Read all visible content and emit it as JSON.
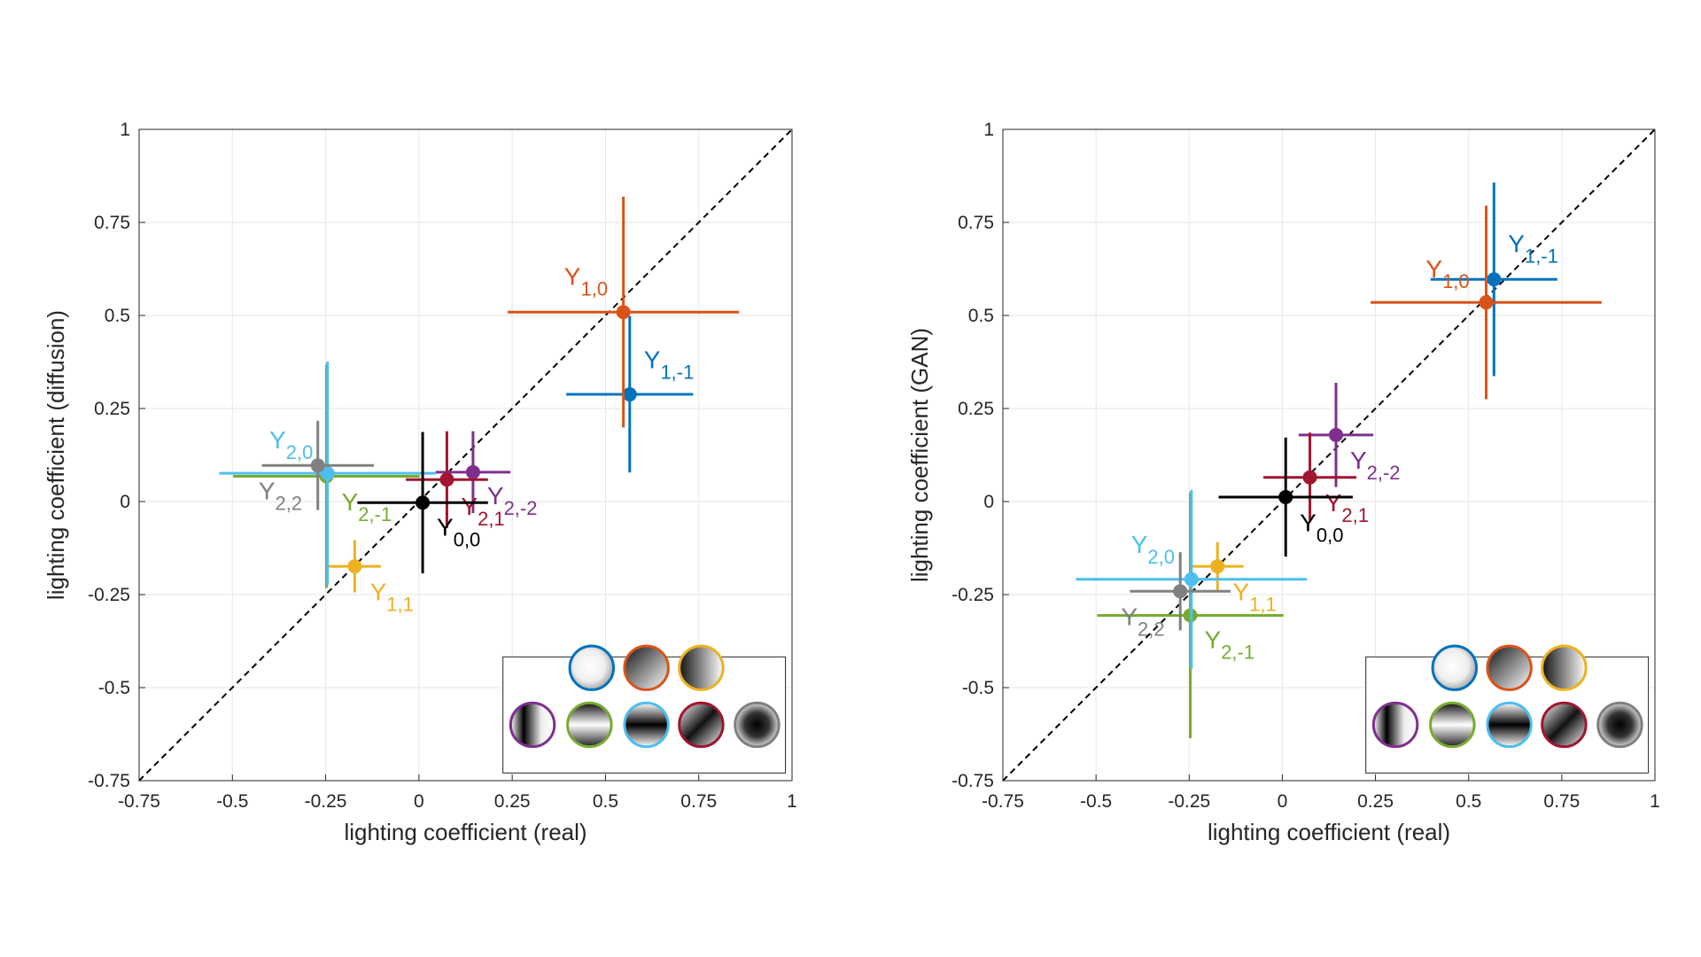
{
  "chart_data": [
    {
      "type": "scatter",
      "xlabel": "lighting coefficient (real)",
      "ylabel": "lighting coefficient (diffusion)",
      "xlim": [
        -0.75,
        1
      ],
      "ylim": [
        -0.75,
        1
      ],
      "xticks": [
        -0.75,
        -0.5,
        -0.25,
        0,
        0.25,
        0.5,
        0.75,
        1
      ],
      "yticks": [
        -0.75,
        -0.5,
        -0.25,
        0,
        0.25,
        0.5,
        0.75,
        1
      ],
      "grid": true,
      "diagonal": true,
      "series": [
        {
          "name": "Y",
          "index": "1,-1",
          "color": "#0072BD",
          "x": [
            0.565
          ],
          "y": [
            0.288
          ],
          "xerr": [
            0.17
          ],
          "yerr": [
            0.21
          ]
        },
        {
          "name": "Y",
          "index": "1,0",
          "color": "#D95319",
          "x": [
            0.548
          ],
          "y": [
            0.509
          ],
          "xerr": [
            0.31
          ],
          "yerr": [
            0.31
          ]
        },
        {
          "name": "Y",
          "index": "1,1",
          "color": "#EDB120",
          "x": [
            -0.172
          ],
          "y": [
            -0.174
          ],
          "xerr": [
            0.07
          ],
          "yerr": [
            0.07
          ]
        },
        {
          "name": "Y",
          "index": "2,-2",
          "color": "#7E2F8E",
          "x": [
            0.145
          ],
          "y": [
            0.079
          ],
          "xerr": [
            0.1
          ],
          "yerr": [
            0.11
          ]
        },
        {
          "name": "Y",
          "index": "2,-1",
          "color": "#77AC30",
          "x": [
            -0.248
          ],
          "y": [
            0.068
          ],
          "xerr": [
            0.25
          ],
          "yerr": [
            0.3
          ]
        },
        {
          "name": "Y",
          "index": "2,0",
          "color": "#4DBEEE",
          "x": [
            -0.245
          ],
          "y": [
            0.076
          ],
          "xerr": [
            0.29
          ],
          "yerr": [
            0.3
          ]
        },
        {
          "name": "Y",
          "index": "2,1",
          "color": "#A2142F",
          "x": [
            0.075
          ],
          "y": [
            0.059
          ],
          "xerr": [
            0.11
          ],
          "yerr": [
            0.13
          ]
        },
        {
          "name": "Y",
          "index": "2,2",
          "color": "#808080",
          "x": [
            -0.271
          ],
          "y": [
            0.097
          ],
          "xerr": [
            0.15
          ],
          "yerr": [
            0.12
          ]
        },
        {
          "name": "Y",
          "index": "0,0",
          "color": "#000000",
          "x": [
            0.01
          ],
          "y": [
            -0.003
          ],
          "xerr": [
            0.175
          ],
          "yerr": [
            0.19
          ]
        }
      ]
    },
    {
      "type": "scatter",
      "xlabel": "lighting coefficient (real)",
      "ylabel": "lighting coefficient (GAN)",
      "xlim": [
        -0.75,
        1
      ],
      "ylim": [
        -0.75,
        1
      ],
      "xticks": [
        -0.75,
        -0.5,
        -0.25,
        0,
        0.25,
        0.5,
        0.75,
        1
      ],
      "yticks": [
        -0.75,
        -0.5,
        -0.25,
        0,
        0.25,
        0.5,
        0.75,
        1
      ],
      "grid": true,
      "diagonal": true,
      "series": [
        {
          "name": "Y",
          "index": "1,-1",
          "color": "#0072BD",
          "x": [
            0.568
          ],
          "y": [
            0.597
          ],
          "xerr": [
            0.17
          ],
          "yerr": [
            0.26
          ]
        },
        {
          "name": "Y",
          "index": "1,0",
          "color": "#D95319",
          "x": [
            0.547
          ],
          "y": [
            0.535
          ],
          "xerr": [
            0.31
          ],
          "yerr": [
            0.26
          ]
        },
        {
          "name": "Y",
          "index": "1,1",
          "color": "#EDB120",
          "x": [
            -0.174
          ],
          "y": [
            -0.174
          ],
          "xerr": [
            0.07
          ],
          "yerr": [
            0.065
          ]
        },
        {
          "name": "Y",
          "index": "2,-2",
          "color": "#7E2F8E",
          "x": [
            0.144
          ],
          "y": [
            0.179
          ],
          "xerr": [
            0.1
          ],
          "yerr": [
            0.14
          ]
        },
        {
          "name": "Y",
          "index": "2,-1",
          "color": "#77AC30",
          "x": [
            -0.247
          ],
          "y": [
            -0.306
          ],
          "xerr": [
            0.25
          ],
          "yerr": [
            0.33
          ]
        },
        {
          "name": "Y",
          "index": "2,0",
          "color": "#4DBEEE",
          "x": [
            -0.244
          ],
          "y": [
            -0.209
          ],
          "xerr": [
            0.31
          ],
          "yerr": [
            0.24
          ]
        },
        {
          "name": "Y",
          "index": "2,1",
          "color": "#A2142F",
          "x": [
            0.074
          ],
          "y": [
            0.065
          ],
          "xerr": [
            0.125
          ],
          "yerr": [
            0.12
          ]
        },
        {
          "name": "Y",
          "index": "2,2",
          "color": "#808080",
          "x": [
            -0.274
          ],
          "y": [
            -0.241
          ],
          "xerr": [
            0.135
          ],
          "yerr": [
            0.105
          ]
        },
        {
          "name": "Y",
          "index": "0,0",
          "color": "#000000",
          "x": [
            0.009
          ],
          "y": [
            0.012
          ],
          "xerr": [
            0.18
          ],
          "yerr": [
            0.16
          ]
        }
      ]
    }
  ]
}
